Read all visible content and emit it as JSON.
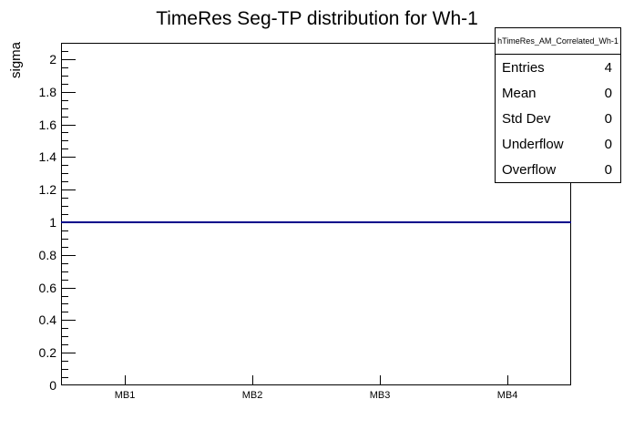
{
  "chart_data": {
    "type": "line",
    "title": "TimeRes Seg-TP distribution for Wh-1",
    "xlabel": "",
    "ylabel": "sigma",
    "categories": [
      "MB1",
      "MB2",
      "MB3",
      "MB4"
    ],
    "series": [
      {
        "name": "hTimeRes_AM_Correlated_Wh-1",
        "values": [
          1,
          1,
          1,
          1
        ]
      }
    ],
    "ylim": [
      0,
      2.1
    ],
    "y_major_step": 0.2,
    "y_minor_step": 0.05,
    "y_tick_labels": [
      "0",
      "0.2",
      "0.4",
      "0.6",
      "0.8",
      "1",
      "1.2",
      "1.4",
      "1.6",
      "1.8",
      "2"
    ],
    "grid": false,
    "legend_position": "none",
    "line_color": "#00008b",
    "frame_color": "#000000",
    "background_color": "#ffffff"
  },
  "stats_box": {
    "header": "hTimeRes_AM_Correlated_Wh-1",
    "rows": [
      {
        "label": "Entries",
        "value": "4"
      },
      {
        "label": "Mean",
        "value": "0"
      },
      {
        "label": "Std Dev",
        "value": "0"
      },
      {
        "label": "Underflow",
        "value": "0"
      },
      {
        "label": "Overflow",
        "value": "0"
      }
    ]
  }
}
